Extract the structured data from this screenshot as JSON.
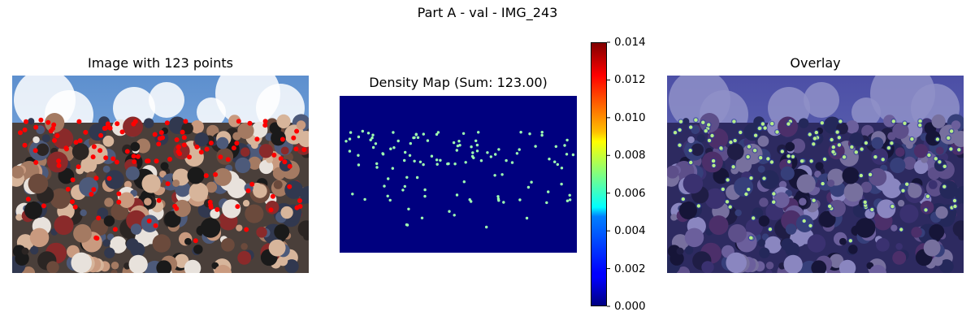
{
  "figure": {
    "suptitle": "Part A - val - IMG_243",
    "panels": [
      {
        "title": "Image with 123 points"
      },
      {
        "title": "Density Map (Sum: 123.00)"
      },
      {
        "title": "Overlay"
      }
    ]
  },
  "chart_data": {
    "type": "heatmap",
    "title": "Density Map (Sum: 123.00)",
    "point_count": 123,
    "density_sum": 123.0,
    "colormap": "jet",
    "colorbar": {
      "vmin": 0.0,
      "vmax": 0.014,
      "ticks": [
        "0.000",
        "0.002",
        "0.004",
        "0.006",
        "0.008",
        "0.010",
        "0.012",
        "0.014"
      ]
    },
    "annotation_color": "#ff0000",
    "overlay_tint": "#3a3a9a"
  }
}
